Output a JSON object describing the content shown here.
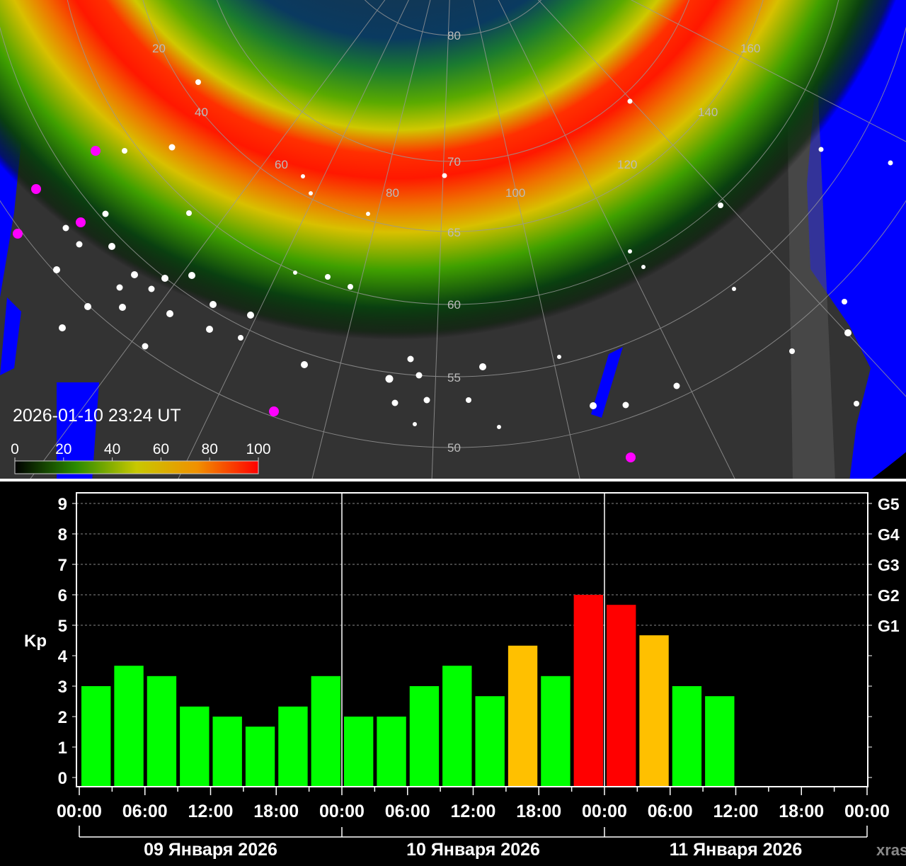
{
  "map": {
    "timestamp": "2026-01-10 23:24 UT",
    "colorbar": {
      "ticks": [
        "0",
        "20",
        "40",
        "60",
        "80",
        "100"
      ],
      "colors": [
        "#000000",
        "#2a8a00",
        "#c8c800",
        "#f09000",
        "#ff0000"
      ]
    },
    "longitude_labels": [
      "20",
      "40",
      "60",
      "80",
      "100",
      "120",
      "140",
      "160"
    ],
    "latitude_labels": [
      "80",
      "70",
      "65",
      "60",
      "55",
      "50"
    ],
    "colors": {
      "land": "#333333",
      "ocean": "#0000ff",
      "night": "#555555",
      "city": "#ffffff",
      "marker": "#ff00ff"
    }
  },
  "chart_data": {
    "type": "bar",
    "ylabel": "Kp",
    "ylim": [
      0,
      9
    ],
    "yticks": [
      "0",
      "1",
      "2",
      "3",
      "4",
      "5",
      "6",
      "7",
      "8",
      "9"
    ],
    "right_axis_labels": [
      {
        "kp": 5,
        "label": "G1"
      },
      {
        "kp": 6,
        "label": "G2"
      },
      {
        "kp": 7,
        "label": "G3"
      },
      {
        "kp": 8,
        "label": "G4"
      },
      {
        "kp": 9,
        "label": "G5"
      }
    ],
    "xticks": [
      "00:00",
      "06:00",
      "12:00",
      "18:00",
      "00:00",
      "06:00",
      "12:00",
      "18:00",
      "00:00",
      "06:00",
      "12:00",
      "18:00",
      "00:00"
    ],
    "days": [
      "09 Января 2026",
      "10 Января 2026",
      "11 Января 2026"
    ],
    "interval_hours": 3,
    "x_start": "2026-01-09 00:00",
    "x_end": "2026-01-12 00:00",
    "values": [
      3,
      3.67,
      3.33,
      2.33,
      2,
      1.67,
      2.33,
      3.33,
      2,
      2,
      3,
      3.67,
      2.67,
      4.33,
      3.33,
      6,
      5.67,
      4.67,
      3,
      2.67
    ],
    "colors": {
      "quiet": "#00ff00",
      "active": "#ffc000",
      "storm": "#ff0000"
    },
    "grid": "dashed at 5-9",
    "watermark": "xras.ru"
  }
}
